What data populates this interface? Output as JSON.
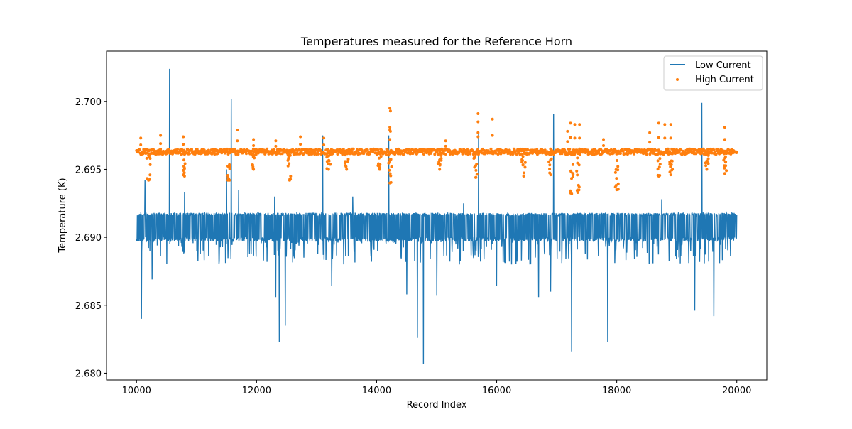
{
  "chart_data": {
    "type": "line",
    "title": "Temperatures measured for the Reference Horn",
    "xlabel": "Record Index",
    "ylabel": "Temperature (K)",
    "xlim": [
      9500,
      20500
    ],
    "ylim": [
      2.6795,
      2.7037
    ],
    "x_ticks": [
      10000,
      12000,
      14000,
      16000,
      18000,
      20000
    ],
    "x_tick_labels": [
      "10000",
      "12000",
      "14000",
      "16000",
      "18000",
      "20000"
    ],
    "y_ticks": [
      2.68,
      2.685,
      2.69,
      2.695,
      2.7
    ],
    "y_tick_labels": [
      "2.680",
      "2.685",
      "2.690",
      "2.695",
      "2.700"
    ],
    "grid": false,
    "legend_position": "top-right",
    "colors": {
      "low": "#1f77b4",
      "high": "#ff7f0e",
      "axes": "#000000"
    },
    "series": [
      {
        "name": "Low Current",
        "style": "line",
        "x_range": [
          10000,
          20000
        ],
        "band_low": 2.69,
        "band_high": 2.6918,
        "lower_wiggle_min": 2.688,
        "spikes": [
          {
            "x": 10080,
            "y": 2.684
          },
          {
            "x": 10140,
            "y": 2.6942
          },
          {
            "x": 10260,
            "y": 2.6869
          },
          {
            "x": 10550,
            "y": 2.7024
          },
          {
            "x": 10800,
            "y": 2.6933
          },
          {
            "x": 11500,
            "y": 2.695
          },
          {
            "x": 11580,
            "y": 2.7002
          },
          {
            "x": 11700,
            "y": 2.6935
          },
          {
            "x": 12300,
            "y": 2.693
          },
          {
            "x": 12320,
            "y": 2.6856
          },
          {
            "x": 12380,
            "y": 2.6823
          },
          {
            "x": 12480,
            "y": 2.6835
          },
          {
            "x": 13100,
            "y": 2.6975
          },
          {
            "x": 13250,
            "y": 2.6864
          },
          {
            "x": 13600,
            "y": 2.693
          },
          {
            "x": 14200,
            "y": 2.6975
          },
          {
            "x": 14500,
            "y": 2.6858
          },
          {
            "x": 14680,
            "y": 2.6826
          },
          {
            "x": 14780,
            "y": 2.6807
          },
          {
            "x": 15000,
            "y": 2.6857
          },
          {
            "x": 15450,
            "y": 2.6925
          },
          {
            "x": 15700,
            "y": 2.6977
          },
          {
            "x": 16000,
            "y": 2.6864
          },
          {
            "x": 16700,
            "y": 2.6856
          },
          {
            "x": 16900,
            "y": 2.686
          },
          {
            "x": 16950,
            "y": 2.6991
          },
          {
            "x": 17250,
            "y": 2.6816
          },
          {
            "x": 17850,
            "y": 2.6823
          },
          {
            "x": 18750,
            "y": 2.6928
          },
          {
            "x": 19300,
            "y": 2.6846
          },
          {
            "x": 19420,
            "y": 2.6999
          },
          {
            "x": 19620,
            "y": 2.6842
          }
        ]
      },
      {
        "name": "High Current",
        "style": "scatter",
        "x_range": [
          10000,
          20000
        ],
        "baseline": 2.6963,
        "dips": [
          {
            "x": 10200,
            "y": 2.6942
          },
          {
            "x": 10800,
            "y": 2.6945
          },
          {
            "x": 11550,
            "y": 2.6942
          },
          {
            "x": 11950,
            "y": 2.695
          },
          {
            "x": 12550,
            "y": 2.6942
          },
          {
            "x": 13200,
            "y": 2.695
          },
          {
            "x": 13500,
            "y": 2.695
          },
          {
            "x": 14050,
            "y": 2.695
          },
          {
            "x": 14220,
            "y": 2.694
          },
          {
            "x": 15050,
            "y": 2.695
          },
          {
            "x": 15650,
            "y": 2.6944
          },
          {
            "x": 16450,
            "y": 2.6945
          },
          {
            "x": 16900,
            "y": 2.6946
          },
          {
            "x": 17250,
            "y": 2.6932
          },
          {
            "x": 17350,
            "y": 2.6933
          },
          {
            "x": 18000,
            "y": 2.6935
          },
          {
            "x": 18700,
            "y": 2.6945
          },
          {
            "x": 18900,
            "y": 2.6946
          },
          {
            "x": 19500,
            "y": 2.695
          },
          {
            "x": 19800,
            "y": 2.6947
          }
        ],
        "peaks": [
          {
            "x": 10070,
            "y": 2.6973
          },
          {
            "x": 10400,
            "y": 2.6975
          },
          {
            "x": 10780,
            "y": 2.6974
          },
          {
            "x": 11680,
            "y": 2.6979
          },
          {
            "x": 11950,
            "y": 2.6972
          },
          {
            "x": 12320,
            "y": 2.6971
          },
          {
            "x": 12730,
            "y": 2.6974
          },
          {
            "x": 13120,
            "y": 2.6973
          },
          {
            "x": 14220,
            "y": 2.6995
          },
          {
            "x": 14230,
            "y": 2.6993
          },
          {
            "x": 14220,
            "y": 2.6981
          },
          {
            "x": 15150,
            "y": 2.6971
          },
          {
            "x": 15690,
            "y": 2.6991
          },
          {
            "x": 15690,
            "y": 2.6985
          },
          {
            "x": 15930,
            "y": 2.6987
          },
          {
            "x": 17180,
            "y": 2.6978
          },
          {
            "x": 17230,
            "y": 2.6984
          },
          {
            "x": 17300,
            "y": 2.6983
          },
          {
            "x": 17380,
            "y": 2.6983
          },
          {
            "x": 17780,
            "y": 2.6972
          },
          {
            "x": 18550,
            "y": 2.6977
          },
          {
            "x": 18700,
            "y": 2.6984
          },
          {
            "x": 18800,
            "y": 2.6983
          },
          {
            "x": 18900,
            "y": 2.6983
          },
          {
            "x": 19800,
            "y": 2.6981
          }
        ]
      }
    ]
  }
}
